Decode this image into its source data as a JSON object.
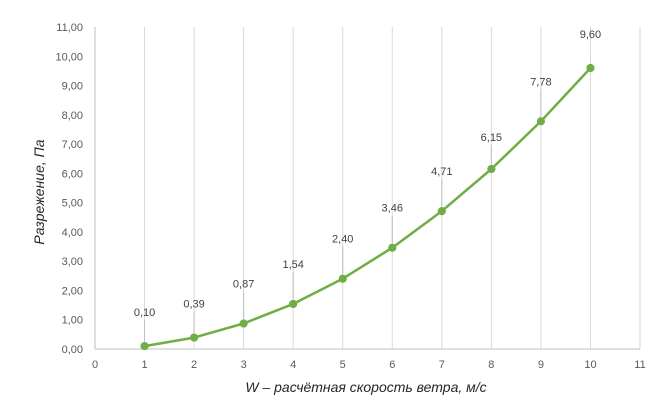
{
  "chart_data": {
    "type": "line",
    "title": "",
    "xlabel": "W – расчётная скорость ветра, м/с",
    "ylabel": "Разрежение, Па",
    "xlim": [
      0,
      11
    ],
    "ylim": [
      0,
      11
    ],
    "x_ticks": [
      "0",
      "1",
      "2",
      "3",
      "4",
      "5",
      "6",
      "7",
      "8",
      "9",
      "10",
      "11"
    ],
    "y_ticks": [
      "0,00",
      "1,00",
      "2,00",
      "3,00",
      "4,00",
      "5,00",
      "6,00",
      "7,00",
      "8,00",
      "9,00",
      "10,00",
      "11,00"
    ],
    "grid": "vertical",
    "series": [
      {
        "color": "#70ad47",
        "x": [
          1,
          2,
          3,
          4,
          5,
          6,
          7,
          8,
          9,
          10
        ],
        "y": [
          0.1,
          0.39,
          0.87,
          1.54,
          2.4,
          3.46,
          4.71,
          6.15,
          7.78,
          9.6
        ],
        "data_labels": [
          "0,10",
          "0,39",
          "0,87",
          "1,54",
          "2,40",
          "3,46",
          "4,71",
          "6,15",
          "7,78",
          "9,60"
        ]
      }
    ]
  }
}
